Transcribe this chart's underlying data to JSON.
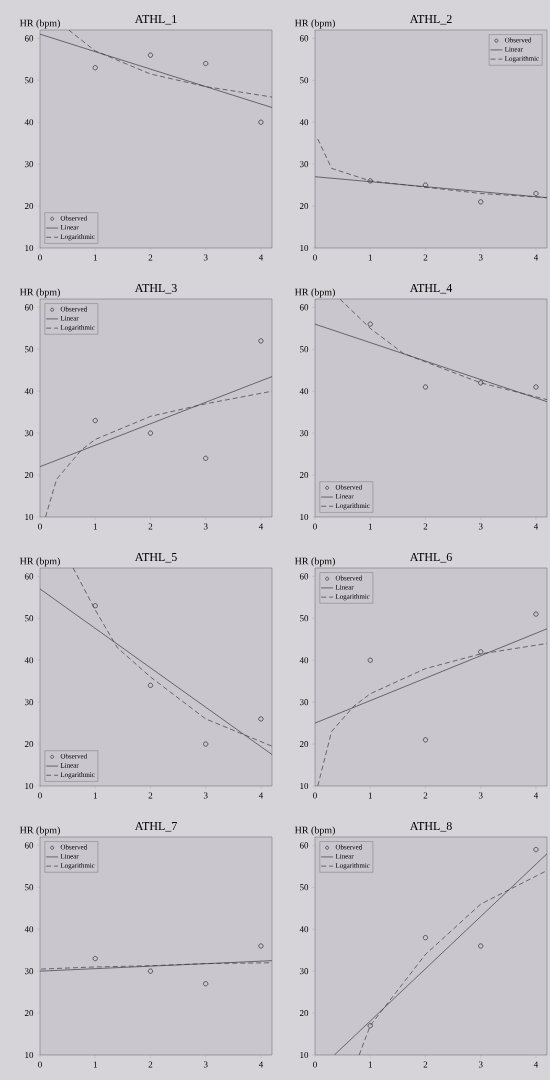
{
  "chart_data": [
    {
      "type": "scatter",
      "title": "ATHL_1",
      "ylabel": "HR (bpm)",
      "xlim": [
        0,
        4.2
      ],
      "ylim": [
        10,
        62
      ],
      "xticks": [
        0,
        1,
        2,
        3,
        4
      ],
      "yticks": [
        10,
        20,
        30,
        40,
        50,
        60
      ],
      "legend": "bottom left",
      "series": [
        {
          "name": "Observed",
          "marker": "circle",
          "color": "#3a3a3a",
          "x": [
            1,
            2,
            3,
            4
          ],
          "values": [
            53,
            56,
            54,
            40
          ]
        },
        {
          "name": "Linear",
          "type": "line",
          "line_style": "solid",
          "color": "#3a3a3a",
          "x": [
            0,
            4.2
          ],
          "values": [
            61,
            43.5
          ]
        },
        {
          "name": "Logarithmic",
          "type": "line",
          "line_style": "dashed",
          "color": "#3a3a3a",
          "x": [
            0.52,
            1,
            2,
            3,
            4.2
          ],
          "values": [
            62,
            57,
            51.5,
            48.5,
            46
          ]
        }
      ]
    },
    {
      "type": "scatter",
      "title": "ATHL_2",
      "ylabel": "HR (bpm)",
      "xlim": [
        0,
        4.2
      ],
      "ylim": [
        10,
        62
      ],
      "xticks": [
        0,
        1,
        2,
        3,
        4
      ],
      "yticks": [
        10,
        20,
        30,
        40,
        50,
        60
      ],
      "legend": "top right",
      "series": [
        {
          "name": "Observed",
          "marker": "circle",
          "color": "#3a3a3a",
          "x": [
            1,
            2,
            3,
            4
          ],
          "values": [
            26,
            25,
            21,
            23
          ]
        },
        {
          "name": "Linear",
          "type": "line",
          "line_style": "solid",
          "color": "#3a3a3a",
          "x": [
            0,
            4.2
          ],
          "values": [
            27,
            22
          ]
        },
        {
          "name": "Logarithmic",
          "type": "line",
          "line_style": "dashed",
          "color": "#3a3a3a",
          "x": [
            0.05,
            0.3,
            1,
            2,
            3,
            4.2
          ],
          "values": [
            36,
            29,
            26,
            24.5,
            23,
            22
          ]
        }
      ]
    },
    {
      "type": "scatter",
      "title": "ATHL_3",
      "ylabel": "HR (bpm)",
      "xlim": [
        0,
        4.2
      ],
      "ylim": [
        10,
        62
      ],
      "xticks": [
        0,
        1,
        2,
        3,
        4
      ],
      "yticks": [
        10,
        20,
        30,
        40,
        50,
        60
      ],
      "legend": "top left",
      "series": [
        {
          "name": "Observed",
          "marker": "circle",
          "color": "#3a3a3a",
          "x": [
            1,
            2,
            3,
            4
          ],
          "values": [
            33,
            30,
            24,
            52
          ]
        },
        {
          "name": "Linear",
          "type": "line",
          "line_style": "solid",
          "color": "#3a3a3a",
          "x": [
            0,
            4.2
          ],
          "values": [
            22,
            43.5
          ]
        },
        {
          "name": "Logarithmic",
          "type": "line",
          "line_style": "dashed",
          "color": "#3a3a3a",
          "x": [
            0.1,
            0.3,
            0.75,
            1,
            2,
            3,
            4.2
          ],
          "values": [
            10,
            19,
            26,
            28.5,
            34,
            37,
            40
          ]
        }
      ]
    },
    {
      "type": "scatter",
      "title": "ATHL_4",
      "ylabel": "HR (bpm)",
      "xlim": [
        0,
        4.2
      ],
      "ylim": [
        10,
        62
      ],
      "xticks": [
        0,
        1,
        2,
        3,
        4
      ],
      "yticks": [
        10,
        20,
        30,
        40,
        50,
        60
      ],
      "legend": "bottom left",
      "series": [
        {
          "name": "Observed",
          "marker": "circle",
          "color": "#3a3a3a",
          "x": [
            1,
            2,
            3,
            4
          ],
          "values": [
            56,
            41,
            42,
            41
          ]
        },
        {
          "name": "Linear",
          "type": "line",
          "line_style": "solid",
          "color": "#3a3a3a",
          "x": [
            0,
            4.2
          ],
          "values": [
            56,
            37.5
          ]
        },
        {
          "name": "Logarithmic",
          "type": "line",
          "line_style": "dashed",
          "color": "#3a3a3a",
          "x": [
            0.45,
            1,
            1.6,
            2,
            3,
            4.2
          ],
          "values": [
            62,
            55,
            49,
            47,
            42,
            38
          ]
        }
      ]
    },
    {
      "type": "scatter",
      "title": "ATHL_5",
      "ylabel": "HR (bpm)",
      "xlim": [
        0,
        4.2
      ],
      "ylim": [
        10,
        62
      ],
      "xticks": [
        0,
        1,
        2,
        3,
        4
      ],
      "yticks": [
        10,
        20,
        30,
        40,
        50,
        60
      ],
      "legend": "bottom left",
      "series": [
        {
          "name": "Observed",
          "marker": "circle",
          "color": "#3a3a3a",
          "x": [
            1,
            2,
            3,
            4
          ],
          "values": [
            53,
            34,
            20,
            26
          ]
        },
        {
          "name": "Linear",
          "type": "line",
          "line_style": "solid",
          "color": "#3a3a3a",
          "x": [
            0,
            4.2
          ],
          "values": [
            57,
            17.5
          ]
        },
        {
          "name": "Logarithmic",
          "type": "line",
          "line_style": "dashed",
          "color": "#3a3a3a",
          "x": [
            0.6,
            1,
            1.4,
            2,
            3,
            4.2
          ],
          "values": [
            62,
            52,
            43,
            36,
            26,
            19.5
          ]
        }
      ]
    },
    {
      "type": "scatter",
      "title": "ATHL_6",
      "ylabel": "HR (bpm)",
      "xlim": [
        0,
        4.2
      ],
      "ylim": [
        10,
        62
      ],
      "xticks": [
        0,
        1,
        2,
        3,
        4
      ],
      "yticks": [
        10,
        20,
        30,
        40,
        50,
        60
      ],
      "legend": "top left",
      "series": [
        {
          "name": "Observed",
          "marker": "circle",
          "color": "#3a3a3a",
          "x": [
            1,
            2,
            3,
            4
          ],
          "values": [
            40,
            21,
            42,
            51
          ]
        },
        {
          "name": "Linear",
          "type": "line",
          "line_style": "solid",
          "color": "#3a3a3a",
          "x": [
            0,
            4.2
          ],
          "values": [
            25,
            47.5
          ]
        },
        {
          "name": "Logarithmic",
          "type": "line",
          "line_style": "dashed",
          "color": "#3a3a3a",
          "x": [
            0.05,
            0.3,
            0.7,
            1,
            2,
            3,
            4.2
          ],
          "values": [
            10,
            23,
            29,
            32,
            38,
            41.5,
            44
          ]
        }
      ]
    },
    {
      "type": "scatter",
      "title": "ATHL_7",
      "ylabel": "HR (bpm)",
      "xlim": [
        0,
        4.2
      ],
      "ylim": [
        10,
        62
      ],
      "xticks": [
        0,
        1,
        2,
        3,
        4
      ],
      "yticks": [
        10,
        20,
        30,
        40,
        50,
        60
      ],
      "legend": "top left",
      "series": [
        {
          "name": "Observed",
          "marker": "circle",
          "color": "#3a3a3a",
          "x": [
            1,
            2,
            3,
            4
          ],
          "values": [
            33,
            30,
            27,
            36
          ]
        },
        {
          "name": "Linear",
          "type": "line",
          "line_style": "solid",
          "color": "#3a3a3a",
          "x": [
            0,
            4.2
          ],
          "values": [
            30,
            32.5
          ]
        },
        {
          "name": "Logarithmic",
          "type": "line",
          "line_style": "dashed",
          "color": "#3a3a3a",
          "x": [
            0.02,
            1,
            2,
            3,
            4.2
          ],
          "values": [
            30.5,
            31,
            31.3,
            31.8,
            32
          ]
        }
      ]
    },
    {
      "type": "scatter",
      "title": "ATHL_8",
      "ylabel": "HR (bpm)",
      "xlim": [
        0,
        4.2
      ],
      "ylim": [
        10,
        62
      ],
      "xticks": [
        0,
        1,
        2,
        3,
        4
      ],
      "yticks": [
        10,
        20,
        30,
        40,
        50,
        60
      ],
      "legend": "top left",
      "series": [
        {
          "name": "Observed",
          "marker": "circle",
          "color": "#3a3a3a",
          "x": [
            1,
            2,
            3,
            4
          ],
          "values": [
            17,
            38,
            36,
            59
          ]
        },
        {
          "name": "Linear",
          "type": "line",
          "line_style": "solid",
          "color": "#3a3a3a",
          "x": [
            0.35,
            4.2
          ],
          "values": [
            10,
            58
          ]
        },
        {
          "name": "Logarithmic",
          "type": "line",
          "line_style": "dashed",
          "color": "#3a3a3a",
          "x": [
            0.8,
            1,
            2,
            3,
            4.2
          ],
          "values": [
            10,
            17,
            34,
            46,
            54
          ]
        }
      ]
    }
  ]
}
